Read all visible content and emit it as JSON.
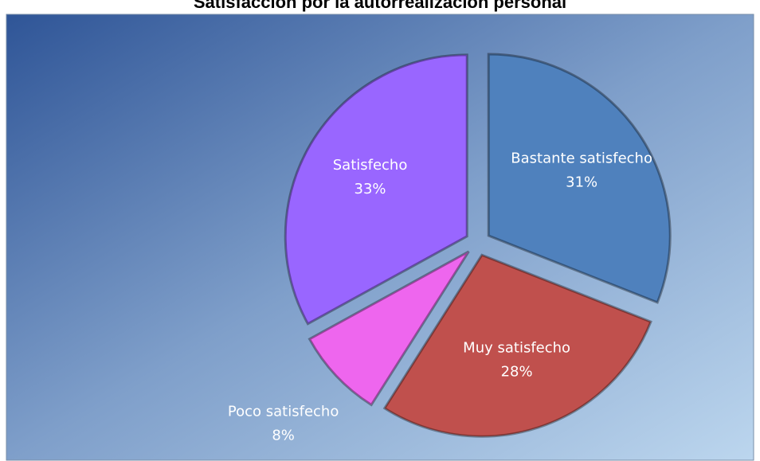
{
  "chart_data": {
    "type": "pie",
    "title": "Satisfacción por la autorrealización personal",
    "categories": [
      "Bastante satisfecho",
      "Muy satisfecho",
      "Poco satisfecho",
      "Satisfecho"
    ],
    "values": [
      31,
      28,
      8,
      33
    ],
    "value_labels": [
      "31%",
      "28%",
      "8%",
      "33%"
    ],
    "colors": [
      "#4f81bd",
      "#c0504d",
      "#ee66ee",
      "#9966ff"
    ]
  }
}
